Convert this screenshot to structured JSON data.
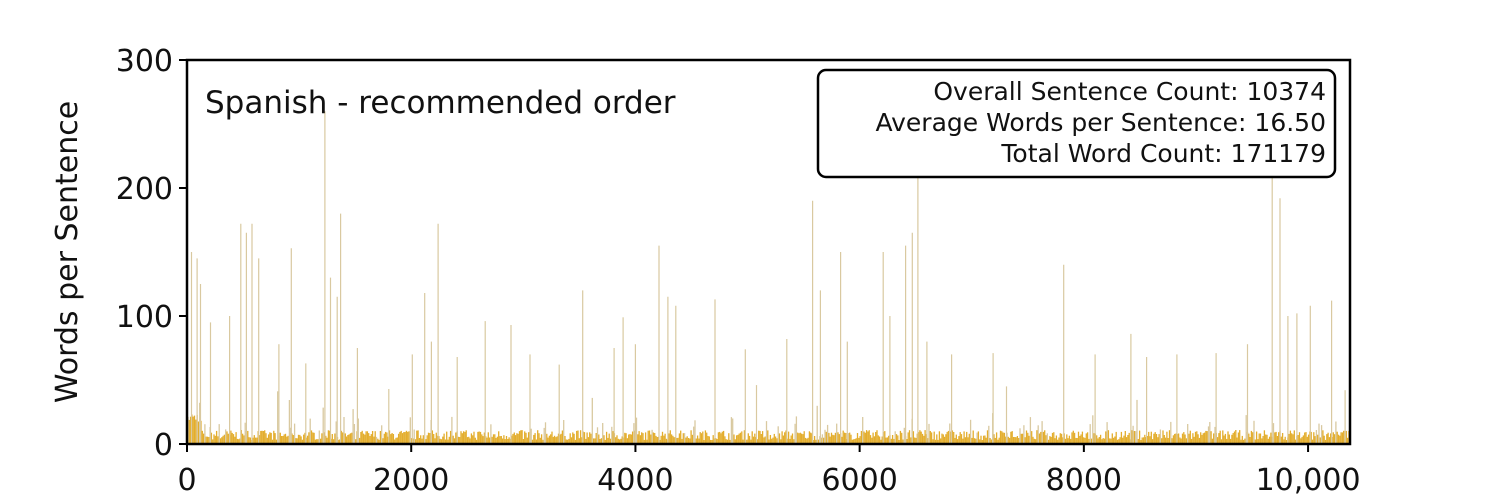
{
  "chart_data": {
    "type": "bar",
    "title": "Spanish - recommended order",
    "xlabel": "",
    "ylabel": "Words per Sentence",
    "xlim": [
      0,
      10374
    ],
    "ylim": [
      0,
      300
    ],
    "x_ticks": [
      {
        "value": 0,
        "label": "0"
      },
      {
        "value": 2000,
        "label": "2000"
      },
      {
        "value": 4000,
        "label": "4000"
      },
      {
        "value": 6000,
        "label": "6000"
      },
      {
        "value": 8000,
        "label": "8000"
      },
      {
        "value": 10000,
        "label": "10,000"
      }
    ],
    "y_ticks": [
      {
        "value": 0,
        "label": "0"
      },
      {
        "value": 100,
        "label": "100"
      },
      {
        "value": 200,
        "label": "200"
      },
      {
        "value": 300,
        "label": "300"
      }
    ],
    "bar_color": "#e3ad2c",
    "spike_color": "#d9c9a0",
    "grid": false,
    "stats_box": {
      "placement": "top-right",
      "lines": [
        "Overall Sentence Count: 10374",
        "Average Words per Sentence: 16.50",
        "Total Word Count: 171179"
      ]
    },
    "peaks": [
      {
        "x": 40,
        "y": 150
      },
      {
        "x": 90,
        "y": 145
      },
      {
        "x": 120,
        "y": 125
      },
      {
        "x": 210,
        "y": 95
      },
      {
        "x": 380,
        "y": 100
      },
      {
        "x": 480,
        "y": 172
      },
      {
        "x": 530,
        "y": 165
      },
      {
        "x": 580,
        "y": 172
      },
      {
        "x": 640,
        "y": 145
      },
      {
        "x": 820,
        "y": 78
      },
      {
        "x": 930,
        "y": 153
      },
      {
        "x": 1060,
        "y": 63
      },
      {
        "x": 1230,
        "y": 260
      },
      {
        "x": 1280,
        "y": 130
      },
      {
        "x": 1340,
        "y": 115
      },
      {
        "x": 1370,
        "y": 180
      },
      {
        "x": 1520,
        "y": 75
      },
      {
        "x": 1800,
        "y": 43
      },
      {
        "x": 2010,
        "y": 70
      },
      {
        "x": 2120,
        "y": 118
      },
      {
        "x": 2180,
        "y": 80
      },
      {
        "x": 2240,
        "y": 172
      },
      {
        "x": 2410,
        "y": 68
      },
      {
        "x": 2660,
        "y": 96
      },
      {
        "x": 2890,
        "y": 93
      },
      {
        "x": 3060,
        "y": 70
      },
      {
        "x": 3320,
        "y": 62
      },
      {
        "x": 3530,
        "y": 120
      },
      {
        "x": 3810,
        "y": 75
      },
      {
        "x": 3890,
        "y": 99
      },
      {
        "x": 4000,
        "y": 78
      },
      {
        "x": 4210,
        "y": 155
      },
      {
        "x": 4290,
        "y": 115
      },
      {
        "x": 4360,
        "y": 108
      },
      {
        "x": 4710,
        "y": 113
      },
      {
        "x": 4980,
        "y": 74
      },
      {
        "x": 5080,
        "y": 46
      },
      {
        "x": 5350,
        "y": 82
      },
      {
        "x": 5580,
        "y": 190
      },
      {
        "x": 5650,
        "y": 120
      },
      {
        "x": 5830,
        "y": 150
      },
      {
        "x": 5890,
        "y": 80
      },
      {
        "x": 6210,
        "y": 150
      },
      {
        "x": 6270,
        "y": 100
      },
      {
        "x": 6410,
        "y": 155
      },
      {
        "x": 6470,
        "y": 165
      },
      {
        "x": 6520,
        "y": 210
      },
      {
        "x": 6600,
        "y": 80
      },
      {
        "x": 6820,
        "y": 70
      },
      {
        "x": 7190,
        "y": 71
      },
      {
        "x": 7310,
        "y": 45
      },
      {
        "x": 7820,
        "y": 140
      },
      {
        "x": 8100,
        "y": 70
      },
      {
        "x": 8420,
        "y": 86
      },
      {
        "x": 8560,
        "y": 68
      },
      {
        "x": 8830,
        "y": 70
      },
      {
        "x": 9180,
        "y": 71
      },
      {
        "x": 9460,
        "y": 78
      },
      {
        "x": 9680,
        "y": 210
      },
      {
        "x": 9750,
        "y": 192
      },
      {
        "x": 9820,
        "y": 100
      },
      {
        "x": 9900,
        "y": 102
      },
      {
        "x": 10020,
        "y": 108
      },
      {
        "x": 10210,
        "y": 112
      },
      {
        "x": 10330,
        "y": 42
      }
    ]
  }
}
